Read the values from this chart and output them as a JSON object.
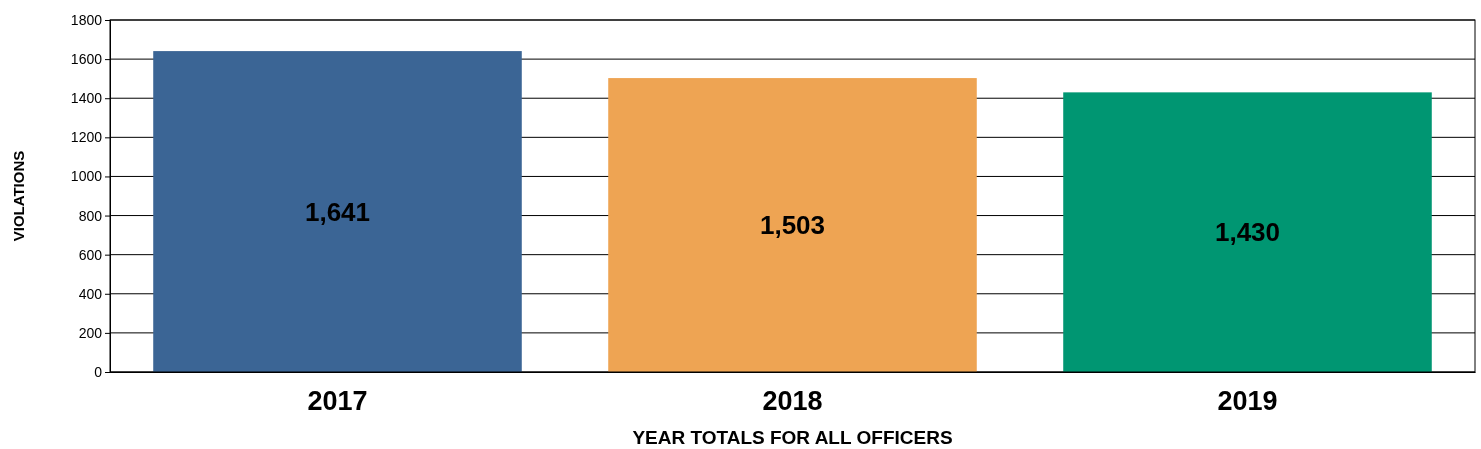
{
  "chart_data": {
    "type": "bar",
    "xlabel": "YEAR TOTALS FOR ALL OFFICERS",
    "ylabel": "VIOLATIONS",
    "categories": [
      "2017",
      "2018",
      "2019"
    ],
    "values": [
      1641,
      1503,
      1430
    ],
    "colors": [
      "#3b6595",
      "#eea453",
      "#009672"
    ],
    "value_labels": [
      "1,641",
      "1,503",
      "1,430"
    ],
    "ylim": [
      0,
      1800
    ],
    "yticks": [
      0,
      200,
      400,
      600,
      800,
      1000,
      1200,
      1400,
      1600,
      1800
    ],
    "grid": "y"
  }
}
